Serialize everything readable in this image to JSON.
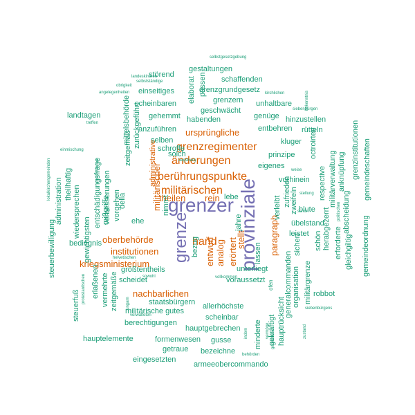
{
  "palette": {
    "teal": "#1b9e77",
    "orange": "#d95f02",
    "purple": "#7570b3"
  },
  "words": [
    {
      "text": "grenzer",
      "color": "purple",
      "weight": 10
    },
    {
      "text": "provinziale",
      "color": "purple",
      "weight": 9,
      "vertical": true
    },
    {
      "text": "grenze",
      "color": "purple",
      "weight": 8,
      "vertical": true
    },
    {
      "text": "grenzregimenter",
      "color": "orange",
      "weight": 7
    },
    {
      "text": "berührungspunkte",
      "color": "orange",
      "weight": 7
    },
    {
      "text": "änderungen",
      "color": "orange",
      "weight": 7
    },
    {
      "text": "militärischen",
      "color": "orange",
      "weight": 7
    },
    {
      "text": "hand",
      "color": "orange",
      "weight": 7
    },
    {
      "text": "kriegsministerium",
      "color": "orange",
      "weight": 5
    },
    {
      "text": "oberbehörde",
      "color": "orange",
      "weight": 5
    },
    {
      "text": "institutionen",
      "color": "orange",
      "weight": 5
    },
    {
      "text": "nachbarlichen",
      "color": "orange",
      "weight": 5
    },
    {
      "text": "ursprüngliche",
      "color": "orange",
      "weight": 5
    },
    {
      "text": "theilen",
      "color": "orange",
      "weight": 5
    },
    {
      "text": "rein",
      "color": "orange",
      "weight": 5
    },
    {
      "text": "militärischer",
      "color": "orange",
      "weight": 5,
      "vertical": true
    },
    {
      "text": "administrative",
      "color": "orange",
      "weight": 4,
      "vertical": true
    },
    {
      "text": "entwurf",
      "color": "orange",
      "weight": 5,
      "vertical": true
    },
    {
      "text": "analog",
      "color": "orange",
      "weight": 5,
      "vertical": true
    },
    {
      "text": "erörtert",
      "color": "orange",
      "weight": 5,
      "vertical": true
    },
    {
      "text": "stellt",
      "color": "orange",
      "weight": 5,
      "vertical": true
    },
    {
      "text": "paragraph",
      "color": "orange",
      "weight": 5,
      "vertical": true
    },
    {
      "text": "gestaltungen",
      "color": "teal",
      "weight": 2
    },
    {
      "text": "schaffenden",
      "color": "teal",
      "weight": 2
    },
    {
      "text": "störend",
      "color": "teal",
      "weight": 2
    },
    {
      "text": "grenzgrundgesetz",
      "color": "teal",
      "weight": 2
    },
    {
      "text": "einseitiges",
      "color": "teal",
      "weight": 2
    },
    {
      "text": "grenzern",
      "color": "teal",
      "weight": 2
    },
    {
      "text": "scheinbaren",
      "color": "teal",
      "weight": 2
    },
    {
      "text": "unhaltbare",
      "color": "teal",
      "weight": 2
    },
    {
      "text": "geschwächt",
      "color": "teal",
      "weight": 2
    },
    {
      "text": "landtagen",
      "color": "teal",
      "weight": 2
    },
    {
      "text": "gehemmt",
      "color": "teal",
      "weight": 2
    },
    {
      "text": "habenden",
      "color": "teal",
      "weight": 2
    },
    {
      "text": "genüge",
      "color": "teal",
      "weight": 2
    },
    {
      "text": "hinzustellen",
      "color": "teal",
      "weight": 2
    },
    {
      "text": "entbehren",
      "color": "teal",
      "weight": 2
    },
    {
      "text": "rütteln",
      "color": "teal",
      "weight": 2
    },
    {
      "text": "anzuführen",
      "color": "teal",
      "weight": 2
    },
    {
      "text": "kluger",
      "color": "teal",
      "weight": 2
    },
    {
      "text": "selben",
      "color": "teal",
      "weight": 2
    },
    {
      "text": "schroffe",
      "color": "teal",
      "weight": 2
    },
    {
      "text": "solch",
      "color": "teal",
      "weight": 2
    },
    {
      "text": "prinzipe",
      "color": "teal",
      "weight": 2
    },
    {
      "text": "eigenes",
      "color": "teal",
      "weight": 2
    },
    {
      "text": "vorhinein",
      "color": "teal",
      "weight": 2
    },
    {
      "text": "lebe",
      "color": "teal",
      "weight": 2
    },
    {
      "text": "ehe",
      "color": "teal",
      "weight": 2
    },
    {
      "text": "blute",
      "color": "teal",
      "weight": 2
    },
    {
      "text": "übelstand",
      "color": "teal",
      "weight": 2
    },
    {
      "text": "leistet",
      "color": "teal",
      "weight": 2
    },
    {
      "text": "bedingnis",
      "color": "teal",
      "weight": 2
    },
    {
      "text": "größtentheils",
      "color": "teal",
      "weight": 2
    },
    {
      "text": "scheidet",
      "color": "teal",
      "weight": 2
    },
    {
      "text": "unterliegt",
      "color": "teal",
      "weight": 2
    },
    {
      "text": "voraussetzt",
      "color": "teal",
      "weight": 2
    },
    {
      "text": "steuerbewilligung",
      "color": "teal",
      "weight": 2
    },
    {
      "text": "staatsbürgern",
      "color": "teal",
      "weight": 2
    },
    {
      "text": "allerhöchste",
      "color": "teal",
      "weight": 2
    },
    {
      "text": "militärische gutes",
      "color": "teal",
      "weight": 2
    },
    {
      "text": "scheinbar",
      "color": "teal",
      "weight": 2
    },
    {
      "text": "berechtigungen",
      "color": "teal",
      "weight": 2
    },
    {
      "text": "hauptgebrechen",
      "color": "teal",
      "weight": 2
    },
    {
      "text": "robbot",
      "color": "teal",
      "weight": 2
    },
    {
      "text": "hauptelemente",
      "color": "teal",
      "weight": 2
    },
    {
      "text": "formenwesen",
      "color": "teal",
      "weight": 2
    },
    {
      "text": "gusse",
      "color": "teal",
      "weight": 2
    },
    {
      "text": "getraue",
      "color": "teal",
      "weight": 2
    },
    {
      "text": "bezeichne",
      "color": "teal",
      "weight": 2
    },
    {
      "text": "eingesetzten",
      "color": "teal",
      "weight": 2
    },
    {
      "text": "armeeobercommando",
      "color": "teal",
      "weight": 2
    },
    {
      "text": "bezug",
      "color": "teal",
      "weight": 2
    },
    {
      "text": "jahre",
      "color": "teal",
      "weight": 2
    },
    {
      "text": "lassen",
      "color": "teal",
      "weight": 2
    },
    {
      "text": "della",
      "color": "teal",
      "weight": 2
    },
    {
      "text": "nimmt",
      "color": "teal",
      "weight": 2
    },
    {
      "text": "verleibt",
      "color": "teal",
      "weight": 2
    },
    {
      "text": "zufrieden",
      "color": "teal",
      "weight": 2
    },
    {
      "text": "zweifeln",
      "color": "teal",
      "weight": 2
    },
    {
      "text": "sichert",
      "color": "teal",
      "weight": 2
    },
    {
      "text": "schön",
      "color": "teal",
      "weight": 2
    },
    {
      "text": "herabgezerrt",
      "color": "teal",
      "weight": 2
    },
    {
      "text": "erforderte",
      "color": "teal",
      "weight": 2
    },
    {
      "text": "gleichgiltig",
      "color": "teal",
      "weight": 2
    },
    {
      "text": "gemeindeordnung",
      "color": "teal",
      "weight": 2
    },
    {
      "text": "abscheidung",
      "color": "teal",
      "weight": 2
    },
    {
      "text": "anknüpfung",
      "color": "teal",
      "weight": 2
    },
    {
      "text": "militärverwaltung",
      "color": "teal",
      "weight": 2
    },
    {
      "text": "respective",
      "color": "teal",
      "weight": 2
    },
    {
      "text": "octroirten",
      "color": "teal",
      "weight": 2
    },
    {
      "text": "grenzinstitutionen",
      "color": "teal",
      "weight": 2
    },
    {
      "text": "gemeindeschaften",
      "color": "teal",
      "weight": 2
    },
    {
      "text": "minderte",
      "color": "teal",
      "weight": 2
    },
    {
      "text": "gekräftigt",
      "color": "teal",
      "weight": 2
    },
    {
      "text": "hauptrücksicht",
      "color": "teal",
      "weight": 2
    },
    {
      "text": "generalcommanden",
      "color": "teal",
      "weight": 2
    },
    {
      "text": "organisation",
      "color": "teal",
      "weight": 2
    },
    {
      "text": "militärgrenze",
      "color": "teal",
      "weight": 2
    },
    {
      "text": "ofen",
      "color": "teal",
      "weight": 1
    },
    {
      "text": "zeitgemäß",
      "color": "teal",
      "weight": 2
    },
    {
      "text": "zurückgeführt",
      "color": "teal",
      "weight": 2
    },
    {
      "text": "mittelsbehörde",
      "color": "teal",
      "weight": 2
    },
    {
      "text": "entschädigungsfrage",
      "color": "teal",
      "weight": 2
    },
    {
      "text": "verbesserungen",
      "color": "teal",
      "weight": 2
    },
    {
      "text": "mißgriffe",
      "color": "teal",
      "weight": 2
    },
    {
      "text": "wiedersprechen",
      "color": "teal",
      "weight": 2
    },
    {
      "text": "theilhaftig",
      "color": "teal",
      "weight": 2
    },
    {
      "text": "administration",
      "color": "teal",
      "weight": 2
    },
    {
      "text": "gewichtigsten",
      "color": "teal",
      "weight": 2
    },
    {
      "text": "erlaßenen",
      "color": "teal",
      "weight": 2
    },
    {
      "text": "vermehrte",
      "color": "teal",
      "weight": 2
    },
    {
      "text": "steuerfuß",
      "color": "teal",
      "weight": 2
    },
    {
      "text": "zeitgemäße",
      "color": "teal",
      "weight": 2
    },
    {
      "text": "vorgehen",
      "color": "teal",
      "weight": 2
    },
    {
      "text": "elaborat",
      "color": "teal",
      "weight": 2
    },
    {
      "text": "passen",
      "color": "teal",
      "weight": 2
    },
    {
      "text": "selbstgesetzgebung",
      "color": "teal",
      "weight": 1
    },
    {
      "text": "landeskirchen",
      "color": "teal",
      "weight": 1
    },
    {
      "text": "selbstständige",
      "color": "teal",
      "weight": 1
    },
    {
      "text": "obrigkeit",
      "color": "teal",
      "weight": 1
    },
    {
      "text": "angelegenheiten",
      "color": "teal",
      "weight": 1
    },
    {
      "text": "kirchlichen",
      "color": "teal",
      "weight": 1
    },
    {
      "text": "siebenbürgen",
      "color": "teal",
      "weight": 1
    },
    {
      "text": "einmischung",
      "color": "teal",
      "weight": 1
    },
    {
      "text": "augsburg",
      "color": "teal",
      "weight": 1
    },
    {
      "text": "weise",
      "color": "teal",
      "weight": 1
    },
    {
      "text": "stellung",
      "color": "teal",
      "weight": 1
    },
    {
      "text": "helvetischen",
      "color": "teal",
      "weight": 1
    },
    {
      "text": "sowohl",
      "color": "teal",
      "weight": 1
    },
    {
      "text": "vollkommen",
      "color": "teal",
      "weight": 1
    },
    {
      "text": "verwalteten",
      "color": "teal",
      "weight": 1
    },
    {
      "text": "siebenbürgens",
      "color": "teal",
      "weight": 1
    },
    {
      "text": "behörden",
      "color": "teal",
      "weight": 1
    },
    {
      "text": "treffen",
      "color": "teal",
      "weight": 1
    },
    {
      "text": "schon",
      "color": "teal",
      "weight": 1
    },
    {
      "text": "protestantischen",
      "color": "teal",
      "weight": 1
    },
    {
      "text": "bekenntnis",
      "color": "teal",
      "weight": 1
    },
    {
      "text": "konfessionen",
      "color": "teal",
      "weight": 1
    },
    {
      "text": "lokalkirchengemeinden",
      "color": "teal",
      "weight": 1
    },
    {
      "text": "ungarn",
      "color": "teal",
      "weight": 1
    },
    {
      "text": "vermöge",
      "color": "teal",
      "weight": 1
    },
    {
      "text": "gemeinden",
      "color": "teal",
      "weight": 1
    },
    {
      "text": "politischen",
      "color": "teal",
      "weight": 1
    },
    {
      "text": "zustand",
      "color": "teal",
      "weight": 1
    },
    {
      "text": "indem",
      "color": "teal",
      "weight": 1
    }
  ]
}
